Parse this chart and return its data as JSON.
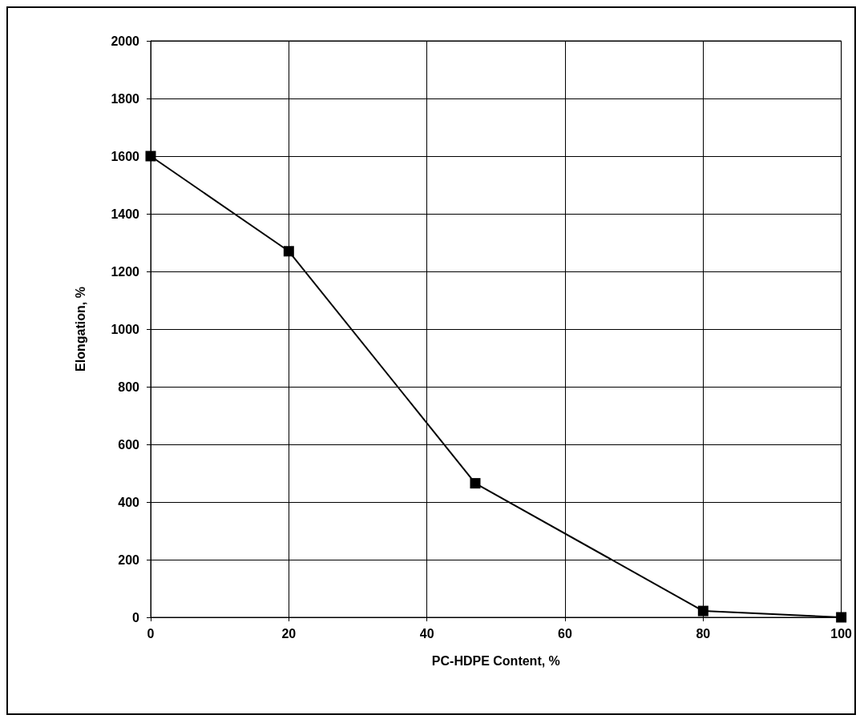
{
  "chart_data": {
    "type": "line",
    "xlabel": "PC-HDPE Content, %",
    "ylabel": "Elongation, %",
    "x": [
      0,
      20,
      47,
      80,
      100
    ],
    "series": [
      {
        "color": "#000000",
        "values": [
          1600,
          1270,
          465,
          22,
          0
        ]
      }
    ],
    "xlim": [
      0,
      100
    ],
    "xticks": [
      0,
      20,
      40,
      60,
      80,
      100
    ],
    "ylim": [
      0,
      2000
    ],
    "yticks": [
      0,
      200,
      400,
      600,
      800,
      1000,
      1200,
      1400,
      1600,
      1800,
      2000
    ],
    "grid": true,
    "marker": "square",
    "line_style": "solid"
  }
}
